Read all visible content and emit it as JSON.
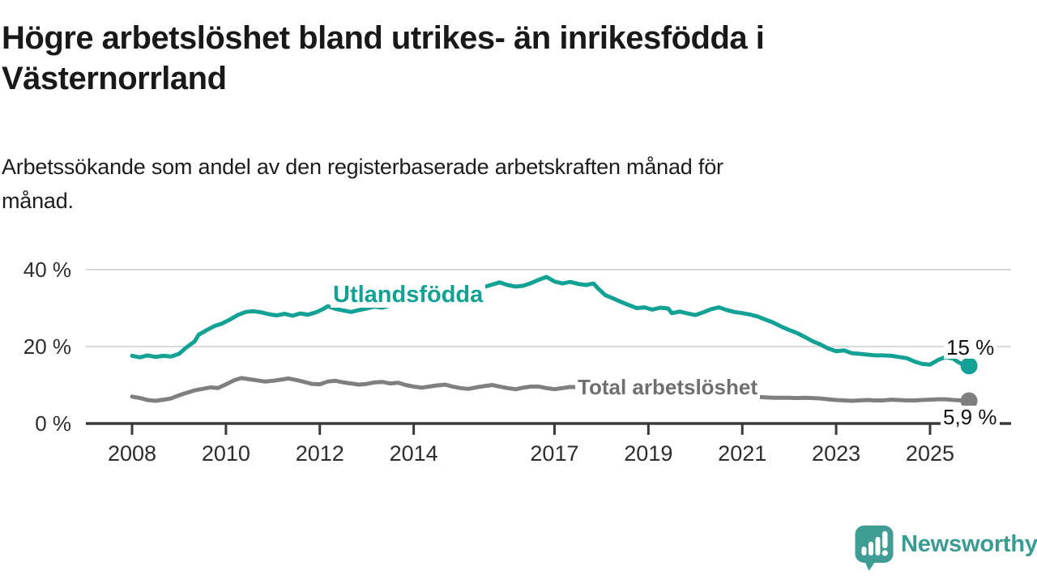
{
  "chart_data": {
    "type": "line",
    "title": "Högre arbetslöshet bland utrikes- än inrikesfödda i Västernorrland",
    "title_lines": [
      "Högre arbetslöshet bland utrikes- än inrikesfödda i",
      "Västernorrland"
    ],
    "subtitle": "Arbetssökande som andel av den registerbaserade arbetskraften månad för månad.",
    "subtitle_lines": [
      "Arbetssökande som andel av den registerbaserade arbetskraften månad för",
      "månad."
    ],
    "unit": "%",
    "grid": true,
    "legend_position": "inline-labels",
    "y_axis": {
      "range": [
        0,
        43
      ],
      "ticks": [
        {
          "value": 40,
          "label": "40 %"
        },
        {
          "value": 20,
          "label": "20 %"
        },
        {
          "value": 0,
          "label": "0 %"
        }
      ]
    },
    "x_axis": {
      "range": [
        2008,
        2025.9
      ],
      "ticks": [
        {
          "year": 2008,
          "label": "2008"
        },
        {
          "year": 2010,
          "label": "2010"
        },
        {
          "year": 2012,
          "label": "2012"
        },
        {
          "year": 2014,
          "label": "2014"
        },
        {
          "year": 2017,
          "label": "2017"
        },
        {
          "year": 2019,
          "label": "2019"
        },
        {
          "year": 2021,
          "label": "2021"
        },
        {
          "year": 2023,
          "label": "2023"
        },
        {
          "year": 2025,
          "label": "2025"
        }
      ]
    },
    "style": {
      "grid_color": "#d9d9d9",
      "axis_color": "#3a3a3a",
      "tick_label_color": "#2d2d2d"
    },
    "series": [
      {
        "name": "Utlandsfödda",
        "color": "#12a195",
        "label_color": "#12a195",
        "end_label": "15 %",
        "end_value": 15,
        "points": [
          [
            2008.0,
            17.6
          ],
          [
            2008.17,
            17.2
          ],
          [
            2008.33,
            17.7
          ],
          [
            2008.5,
            17.3
          ],
          [
            2008.67,
            17.6
          ],
          [
            2008.83,
            17.4
          ],
          [
            2009.0,
            18.1
          ],
          [
            2009.17,
            19.9
          ],
          [
            2009.33,
            21.3
          ],
          [
            2009.42,
            23.1
          ],
          [
            2009.58,
            24.2
          ],
          [
            2009.75,
            25.3
          ],
          [
            2009.92,
            26.0
          ],
          [
            2010.08,
            27.0
          ],
          [
            2010.25,
            28.2
          ],
          [
            2010.42,
            29.0
          ],
          [
            2010.58,
            29.2
          ],
          [
            2010.75,
            28.9
          ],
          [
            2010.92,
            28.4
          ],
          [
            2011.08,
            28.1
          ],
          [
            2011.25,
            28.5
          ],
          [
            2011.42,
            28.0
          ],
          [
            2011.58,
            28.6
          ],
          [
            2011.75,
            28.3
          ],
          [
            2011.92,
            28.9
          ],
          [
            2012.08,
            29.8
          ],
          [
            2012.17,
            30.5
          ],
          [
            2012.33,
            29.8
          ],
          [
            2012.5,
            29.4
          ],
          [
            2012.67,
            29.0
          ],
          [
            2012.83,
            29.5
          ],
          [
            2013.0,
            29.9
          ],
          [
            2013.17,
            30.4
          ],
          [
            2013.33,
            30.1
          ],
          [
            2013.5,
            30.7
          ],
          [
            2013.67,
            31.2
          ],
          [
            2013.83,
            31.6
          ],
          [
            2014.0,
            32.0
          ],
          [
            2014.17,
            32.5
          ],
          [
            2014.33,
            32.2
          ],
          [
            2014.5,
            32.7
          ],
          [
            2014.67,
            33.2
          ],
          [
            2014.83,
            33.6
          ],
          [
            2015.0,
            34.0
          ],
          [
            2015.17,
            34.5
          ],
          [
            2015.33,
            34.9
          ],
          [
            2015.5,
            35.5
          ],
          [
            2015.67,
            36.1
          ],
          [
            2015.83,
            36.7
          ],
          [
            2016.0,
            36.0
          ],
          [
            2016.17,
            35.6
          ],
          [
            2016.33,
            35.8
          ],
          [
            2016.5,
            36.5
          ],
          [
            2016.67,
            37.4
          ],
          [
            2016.83,
            38.1
          ],
          [
            2017.0,
            36.9
          ],
          [
            2017.17,
            36.4
          ],
          [
            2017.33,
            36.8
          ],
          [
            2017.5,
            36.3
          ],
          [
            2017.67,
            36.0
          ],
          [
            2017.83,
            36.4
          ],
          [
            2017.92,
            35.2
          ],
          [
            2018.08,
            33.4
          ],
          [
            2018.25,
            32.5
          ],
          [
            2018.42,
            31.6
          ],
          [
            2018.58,
            30.8
          ],
          [
            2018.75,
            30.0
          ],
          [
            2018.92,
            30.2
          ],
          [
            2019.08,
            29.6
          ],
          [
            2019.25,
            30.1
          ],
          [
            2019.42,
            29.9
          ],
          [
            2019.5,
            28.7
          ],
          [
            2019.67,
            29.1
          ],
          [
            2019.83,
            28.6
          ],
          [
            2020.0,
            28.2
          ],
          [
            2020.17,
            28.9
          ],
          [
            2020.33,
            29.7
          ],
          [
            2020.5,
            30.2
          ],
          [
            2020.67,
            29.5
          ],
          [
            2020.83,
            29.0
          ],
          [
            2021.0,
            28.7
          ],
          [
            2021.17,
            28.3
          ],
          [
            2021.33,
            27.8
          ],
          [
            2021.5,
            27.0
          ],
          [
            2021.67,
            26.2
          ],
          [
            2021.83,
            25.2
          ],
          [
            2022.0,
            24.3
          ],
          [
            2022.17,
            23.5
          ],
          [
            2022.33,
            22.5
          ],
          [
            2022.5,
            21.4
          ],
          [
            2022.67,
            20.5
          ],
          [
            2022.83,
            19.5
          ],
          [
            2023.0,
            18.8
          ],
          [
            2023.17,
            19.0
          ],
          [
            2023.33,
            18.3
          ],
          [
            2023.5,
            18.1
          ],
          [
            2023.67,
            17.9
          ],
          [
            2023.83,
            17.7
          ],
          [
            2024.0,
            17.7
          ],
          [
            2024.17,
            17.6
          ],
          [
            2024.33,
            17.3
          ],
          [
            2024.5,
            17.0
          ],
          [
            2024.67,
            16.1
          ],
          [
            2024.83,
            15.5
          ],
          [
            2025.0,
            15.3
          ],
          [
            2025.17,
            16.5
          ],
          [
            2025.33,
            17.3
          ],
          [
            2025.5,
            16.8
          ],
          [
            2025.62,
            15.8
          ],
          [
            2025.83,
            15.0
          ]
        ]
      },
      {
        "name": "Total arbetslöshet",
        "color": "#7f7f7f",
        "label_color": "#6f6f6f",
        "end_label": "5,9 %",
        "end_value": 5.9,
        "points": [
          [
            2008.0,
            7.0
          ],
          [
            2008.17,
            6.6
          ],
          [
            2008.33,
            6.1
          ],
          [
            2008.5,
            5.9
          ],
          [
            2008.67,
            6.2
          ],
          [
            2008.83,
            6.5
          ],
          [
            2009.0,
            7.3
          ],
          [
            2009.17,
            8.0
          ],
          [
            2009.33,
            8.6
          ],
          [
            2009.5,
            9.0
          ],
          [
            2009.67,
            9.4
          ],
          [
            2009.83,
            9.2
          ],
          [
            2010.0,
            10.2
          ],
          [
            2010.17,
            11.2
          ],
          [
            2010.33,
            11.8
          ],
          [
            2010.5,
            11.5
          ],
          [
            2010.67,
            11.2
          ],
          [
            2010.83,
            10.9
          ],
          [
            2011.0,
            11.1
          ],
          [
            2011.17,
            11.4
          ],
          [
            2011.33,
            11.7
          ],
          [
            2011.5,
            11.3
          ],
          [
            2011.67,
            10.8
          ],
          [
            2011.83,
            10.3
          ],
          [
            2012.0,
            10.2
          ],
          [
            2012.17,
            10.9
          ],
          [
            2012.33,
            11.1
          ],
          [
            2012.5,
            10.7
          ],
          [
            2012.67,
            10.4
          ],
          [
            2012.83,
            10.1
          ],
          [
            2013.0,
            10.3
          ],
          [
            2013.17,
            10.7
          ],
          [
            2013.33,
            10.8
          ],
          [
            2013.5,
            10.4
          ],
          [
            2013.67,
            10.6
          ],
          [
            2013.83,
            10.0
          ],
          [
            2014.0,
            9.6
          ],
          [
            2014.17,
            9.3
          ],
          [
            2014.33,
            9.6
          ],
          [
            2014.5,
            9.9
          ],
          [
            2014.67,
            10.1
          ],
          [
            2014.83,
            9.6
          ],
          [
            2015.0,
            9.2
          ],
          [
            2015.17,
            9.0
          ],
          [
            2015.33,
            9.4
          ],
          [
            2015.5,
            9.7
          ],
          [
            2015.67,
            10.0
          ],
          [
            2015.83,
            9.6
          ],
          [
            2016.0,
            9.2
          ],
          [
            2016.17,
            8.9
          ],
          [
            2016.33,
            9.3
          ],
          [
            2016.5,
            9.6
          ],
          [
            2016.67,
            9.6
          ],
          [
            2016.83,
            9.2
          ],
          [
            2017.0,
            8.9
          ],
          [
            2017.17,
            9.2
          ],
          [
            2017.33,
            9.5
          ],
          [
            2017.5,
            9.4
          ],
          [
            2017.67,
            9.2
          ],
          [
            2017.83,
            9.0
          ],
          [
            2018.0,
            8.9
          ],
          [
            2018.25,
            8.8
          ],
          [
            2018.5,
            8.7
          ],
          [
            2018.75,
            8.5
          ],
          [
            2019.0,
            8.3
          ],
          [
            2019.25,
            8.3
          ],
          [
            2019.5,
            8.1
          ],
          [
            2019.75,
            8.0
          ],
          [
            2020.0,
            8.0
          ],
          [
            2020.25,
            8.3
          ],
          [
            2020.5,
            8.2
          ],
          [
            2020.75,
            7.8
          ],
          [
            2021.0,
            7.2
          ],
          [
            2021.17,
            7.0
          ],
          [
            2021.33,
            6.9
          ],
          [
            2021.5,
            6.8
          ],
          [
            2021.67,
            6.7
          ],
          [
            2021.83,
            6.7
          ],
          [
            2022.0,
            6.7
          ],
          [
            2022.17,
            6.6
          ],
          [
            2022.33,
            6.7
          ],
          [
            2022.5,
            6.6
          ],
          [
            2022.67,
            6.5
          ],
          [
            2022.83,
            6.3
          ],
          [
            2023.0,
            6.1
          ],
          [
            2023.17,
            6.0
          ],
          [
            2023.33,
            5.9
          ],
          [
            2023.5,
            6.0
          ],
          [
            2023.67,
            6.1
          ],
          [
            2023.83,
            6.0
          ],
          [
            2024.0,
            6.0
          ],
          [
            2024.17,
            6.2
          ],
          [
            2024.33,
            6.1
          ],
          [
            2024.5,
            6.0
          ],
          [
            2024.67,
            6.0
          ],
          [
            2024.83,
            6.1
          ],
          [
            2025.0,
            6.2
          ],
          [
            2025.17,
            6.3
          ],
          [
            2025.33,
            6.3
          ],
          [
            2025.5,
            6.1
          ],
          [
            2025.83,
            5.9
          ]
        ]
      }
    ]
  },
  "branding": {
    "wordmark": "Newsworthy",
    "color": "#3a9a94"
  }
}
